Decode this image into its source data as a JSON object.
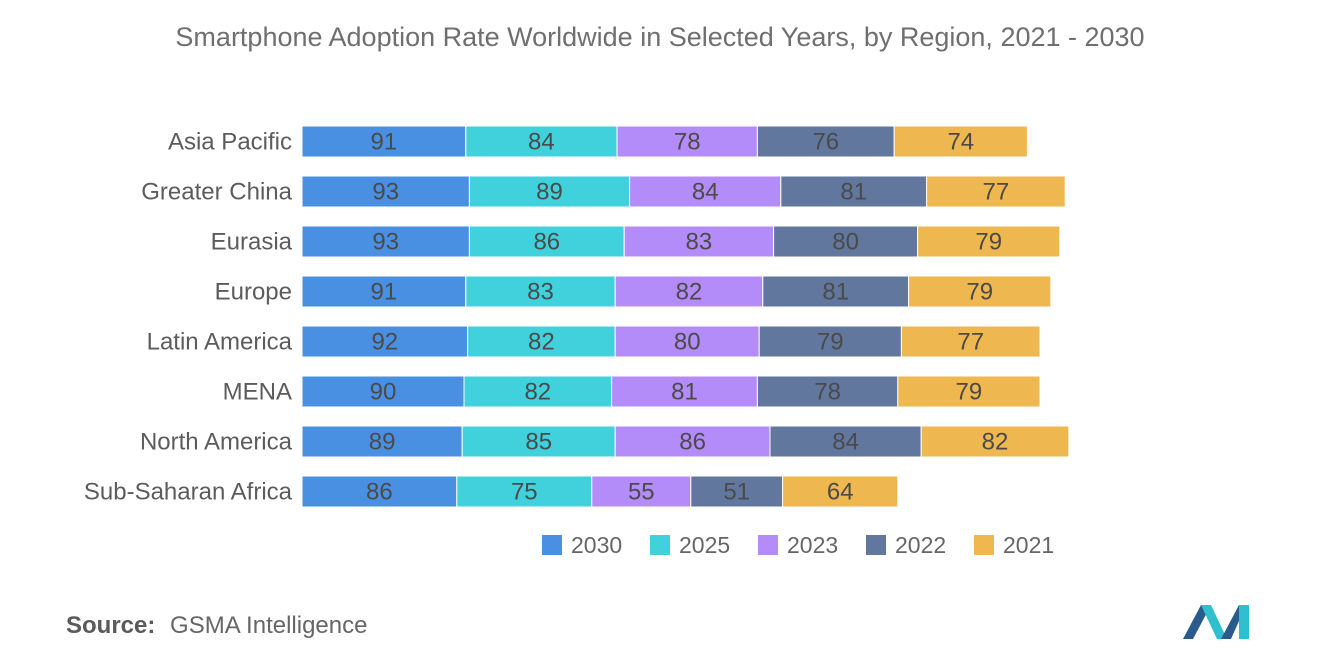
{
  "chart_data": {
    "type": "bar",
    "orientation": "horizontal",
    "stacked": true,
    "title": "Smartphone Adoption Rate Worldwide in Selected Years, by Region, 2021 - 2030",
    "xlabel": "",
    "ylabel": "",
    "categories": [
      "Asia Pacific",
      "Greater China",
      "Eurasia",
      "Europe",
      "Latin America",
      "MENA",
      "North America",
      "Sub-Saharan Africa"
    ],
    "series": [
      {
        "name": "2030",
        "color": "#4a90e2",
        "values": [
          91,
          93,
          93,
          91,
          92,
          90,
          89,
          86
        ]
      },
      {
        "name": "2025",
        "color": "#41d1dc",
        "values": [
          84,
          89,
          86,
          83,
          82,
          82,
          85,
          75
        ]
      },
      {
        "name": "2023",
        "color": "#b48cfa",
        "values": [
          78,
          84,
          83,
          82,
          80,
          81,
          86,
          55
        ]
      },
      {
        "name": "2022",
        "color": "#61779e",
        "values": [
          76,
          81,
          80,
          81,
          79,
          78,
          84,
          51
        ]
      },
      {
        "name": "2021",
        "color": "#efb74f",
        "values": [
          74,
          77,
          79,
          79,
          77,
          79,
          82,
          64
        ]
      }
    ],
    "legend_position": "bottom-center",
    "grid": false
  },
  "source": {
    "label": "Source:",
    "text": "GSMA Intelligence"
  },
  "logo": {
    "icon": "mordor-intelligence-logo-icon",
    "colors": [
      "#2a5b8c",
      "#2fc0cf"
    ]
  }
}
